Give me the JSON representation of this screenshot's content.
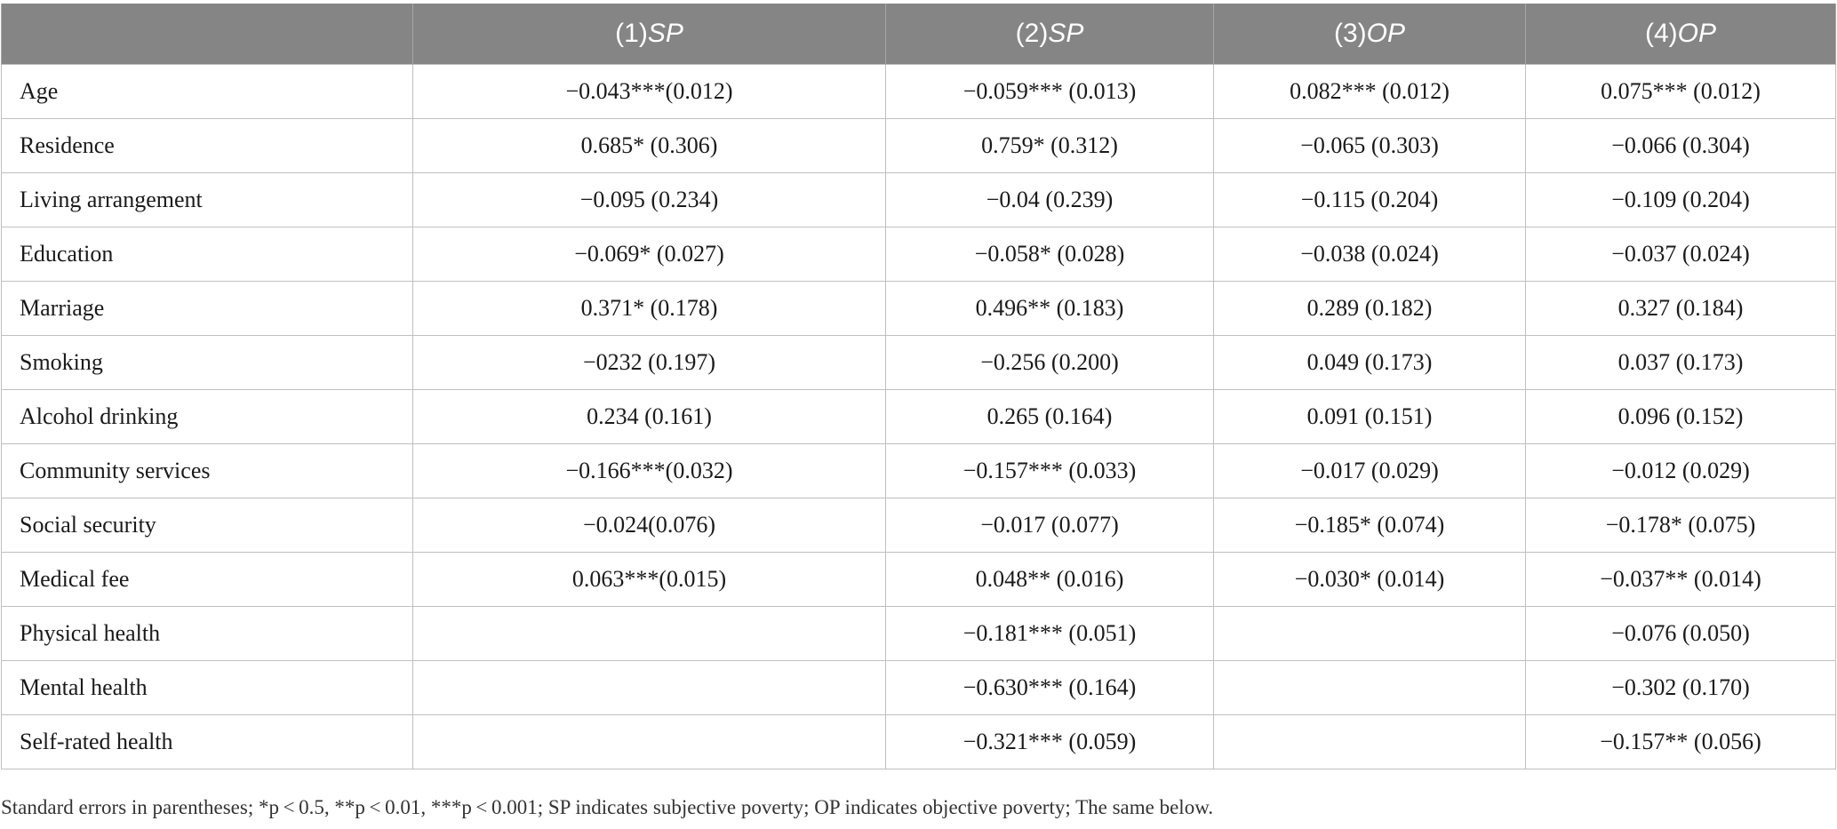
{
  "table": {
    "header": {
      "corner": "",
      "models": [
        {
          "number": "(1)",
          "dependent": "SP"
        },
        {
          "number": "(2)",
          "dependent": "SP"
        },
        {
          "number": "(3)",
          "dependent": "OP"
        },
        {
          "number": "(4)",
          "dependent": "OP"
        }
      ]
    },
    "rows": [
      {
        "variable": "Age",
        "values": [
          "−0.043***(0.012)",
          "−0.059*** (0.013)",
          "0.082*** (0.012)",
          "0.075*** (0.012)"
        ]
      },
      {
        "variable": "Residence",
        "values": [
          "0.685* (0.306)",
          "0.759* (0.312)",
          "−0.065 (0.303)",
          "−0.066 (0.304)"
        ]
      },
      {
        "variable": "Living arrangement",
        "values": [
          "−0.095 (0.234)",
          "−0.04 (0.239)",
          "−0.115 (0.204)",
          "−0.109 (0.204)"
        ]
      },
      {
        "variable": "Education",
        "values": [
          "−0.069* (0.027)",
          "−0.058* (0.028)",
          "−0.038 (0.024)",
          "−0.037 (0.024)"
        ]
      },
      {
        "variable": "Marriage",
        "values": [
          "0.371* (0.178)",
          "0.496** (0.183)",
          "0.289 (0.182)",
          "0.327 (0.184)"
        ]
      },
      {
        "variable": "Smoking",
        "values": [
          "−0232 (0.197)",
          "−0.256 (0.200)",
          "0.049 (0.173)",
          "0.037 (0.173)"
        ]
      },
      {
        "variable": "Alcohol drinking",
        "values": [
          "0.234 (0.161)",
          "0.265 (0.164)",
          "0.091 (0.151)",
          "0.096 (0.152)"
        ]
      },
      {
        "variable": "Community services",
        "values": [
          "−0.166***(0.032)",
          "−0.157*** (0.033)",
          "−0.017 (0.029)",
          "−0.012 (0.029)"
        ]
      },
      {
        "variable": "Social security",
        "values": [
          "−0.024(0.076)",
          "−0.017 (0.077)",
          "−0.185* (0.074)",
          "−0.178* (0.075)"
        ]
      },
      {
        "variable": "Medical fee",
        "values": [
          "0.063***(0.015)",
          "0.048** (0.016)",
          "−0.030* (0.014)",
          "−0.037** (0.014)"
        ]
      },
      {
        "variable": "Physical health",
        "values": [
          "",
          "−0.181*** (0.051)",
          "",
          "−0.076 (0.050)"
        ]
      },
      {
        "variable": "Mental health",
        "values": [
          "",
          "−0.630*** (0.164)",
          "",
          "−0.302 (0.170)"
        ]
      },
      {
        "variable": "Self-rated health",
        "values": [
          "",
          "−0.321*** (0.059)",
          "",
          "−0.157** (0.056)"
        ]
      }
    ]
  },
  "note": "Standard errors in parentheses; *p < 0.5, **p < 0.01, ***p < 0.001; SP indicates subjective poverty; OP indicates objective poverty; The same below."
}
